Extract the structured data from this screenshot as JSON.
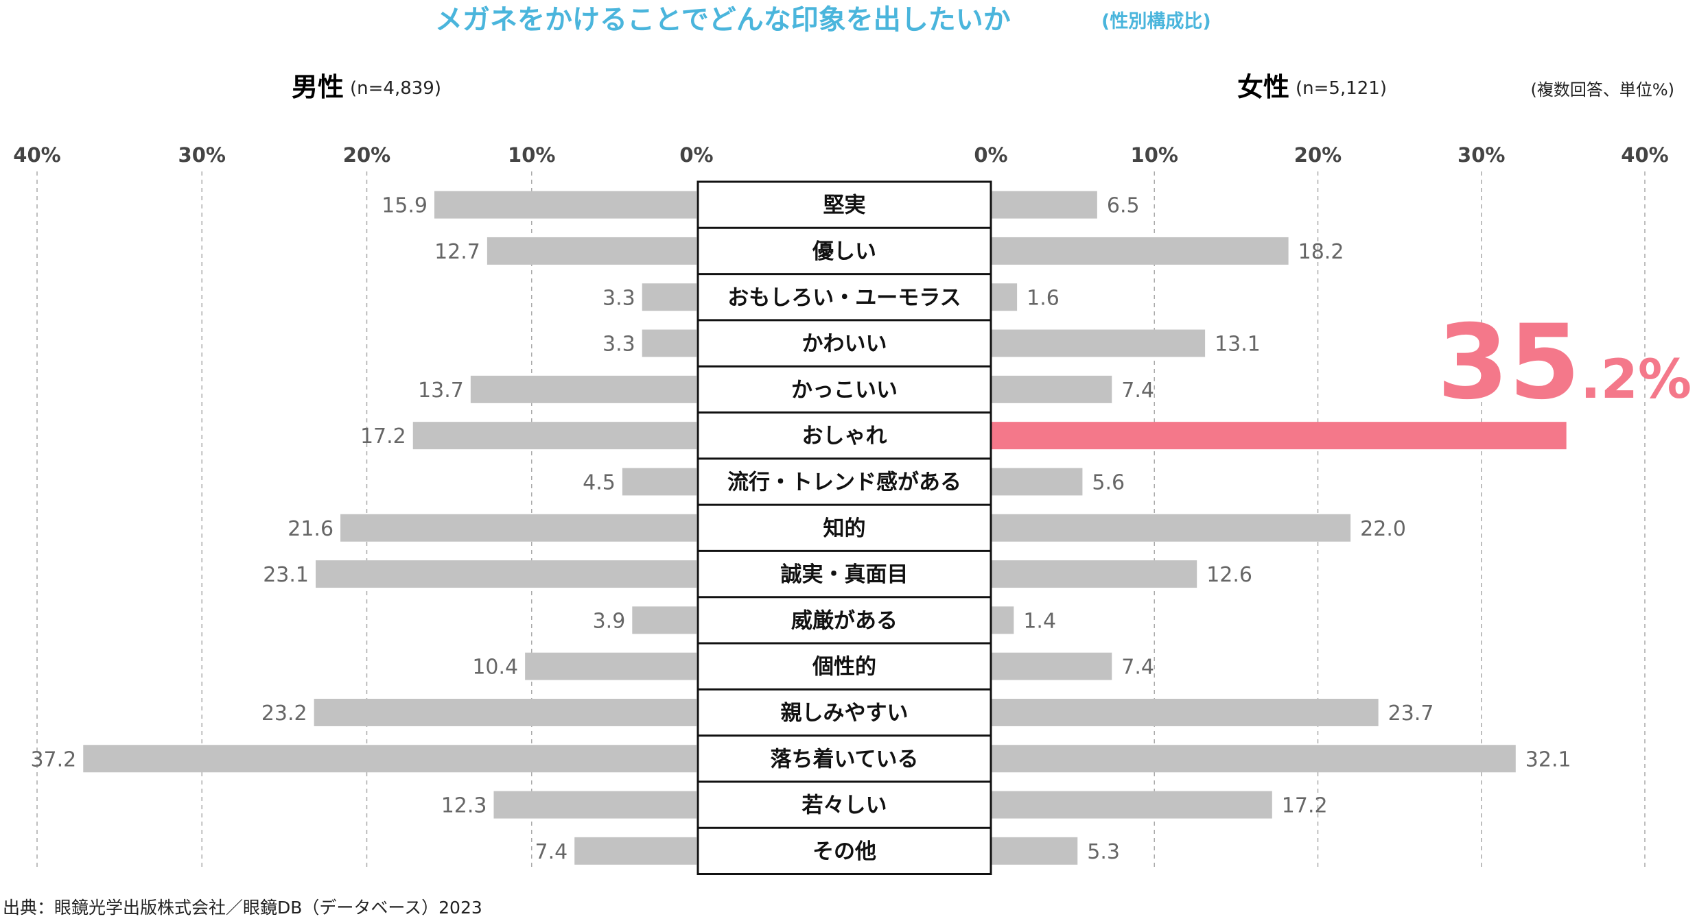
{
  "chart_data": {
    "type": "bar",
    "orientation": "horizontal-butterfly",
    "title": "メガネをかけることでどんな印象を出したいか",
    "subtitle": "(性別構成比)",
    "note": "(複数回答、単位%)",
    "source": "出典：眼鏡光学出版株式会社／眼鏡DB（データベース）2023",
    "xlim": [
      0,
      40
    ],
    "ticks": [
      "0%",
      "10%",
      "20%",
      "30%",
      "40%"
    ],
    "grid": true,
    "categories": [
      "堅実",
      "優しい",
      "おもしろい・ユーモラス",
      "かわいい",
      "かっこいい",
      "おしゃれ",
      "流行・トレンド感がある",
      "知的",
      "誠実・真面目",
      "威厳がある",
      "個性的",
      "親しみやすい",
      "落ち着いている",
      "若々しい",
      "その他"
    ],
    "series": [
      {
        "name": "男性",
        "n": "(n=4,839)",
        "side": "left",
        "values": [
          15.9,
          12.7,
          3.3,
          3.3,
          13.7,
          17.2,
          4.5,
          21.6,
          23.1,
          3.9,
          10.4,
          23.2,
          37.2,
          12.3,
          7.4
        ],
        "labels": [
          "15.9",
          "12.7",
          "3.3",
          "3.3",
          "13.7",
          "17.2",
          "4.5",
          "21.6",
          "23.1",
          "3.9",
          "10.4",
          "23.2",
          "37.2",
          "12.3",
          "7.4"
        ]
      },
      {
        "name": "女性",
        "n": "(n=5,121)",
        "side": "right",
        "values": [
          6.5,
          18.2,
          1.6,
          13.1,
          7.4,
          35.2,
          5.6,
          22.0,
          12.6,
          1.4,
          7.4,
          23.7,
          32.1,
          17.2,
          5.3
        ],
        "labels": [
          "6.5",
          "18.2",
          "1.6",
          "13.1",
          "7.4",
          "",
          "5.6",
          "22.0",
          "12.6",
          "1.4",
          "7.4",
          "23.7",
          "32.1",
          "17.2",
          "5.3"
        ]
      }
    ],
    "highlight": {
      "series": "女性",
      "category": "おしゃれ",
      "value_int": "35",
      "value_dec": ".2%"
    }
  },
  "colors": {
    "title": "#4ab5dc",
    "bar": "#c2c2c2",
    "highlight": "#f4788a",
    "male_label": "#222222",
    "female_label": "#f4788a",
    "grid": "#aaaaaa"
  }
}
